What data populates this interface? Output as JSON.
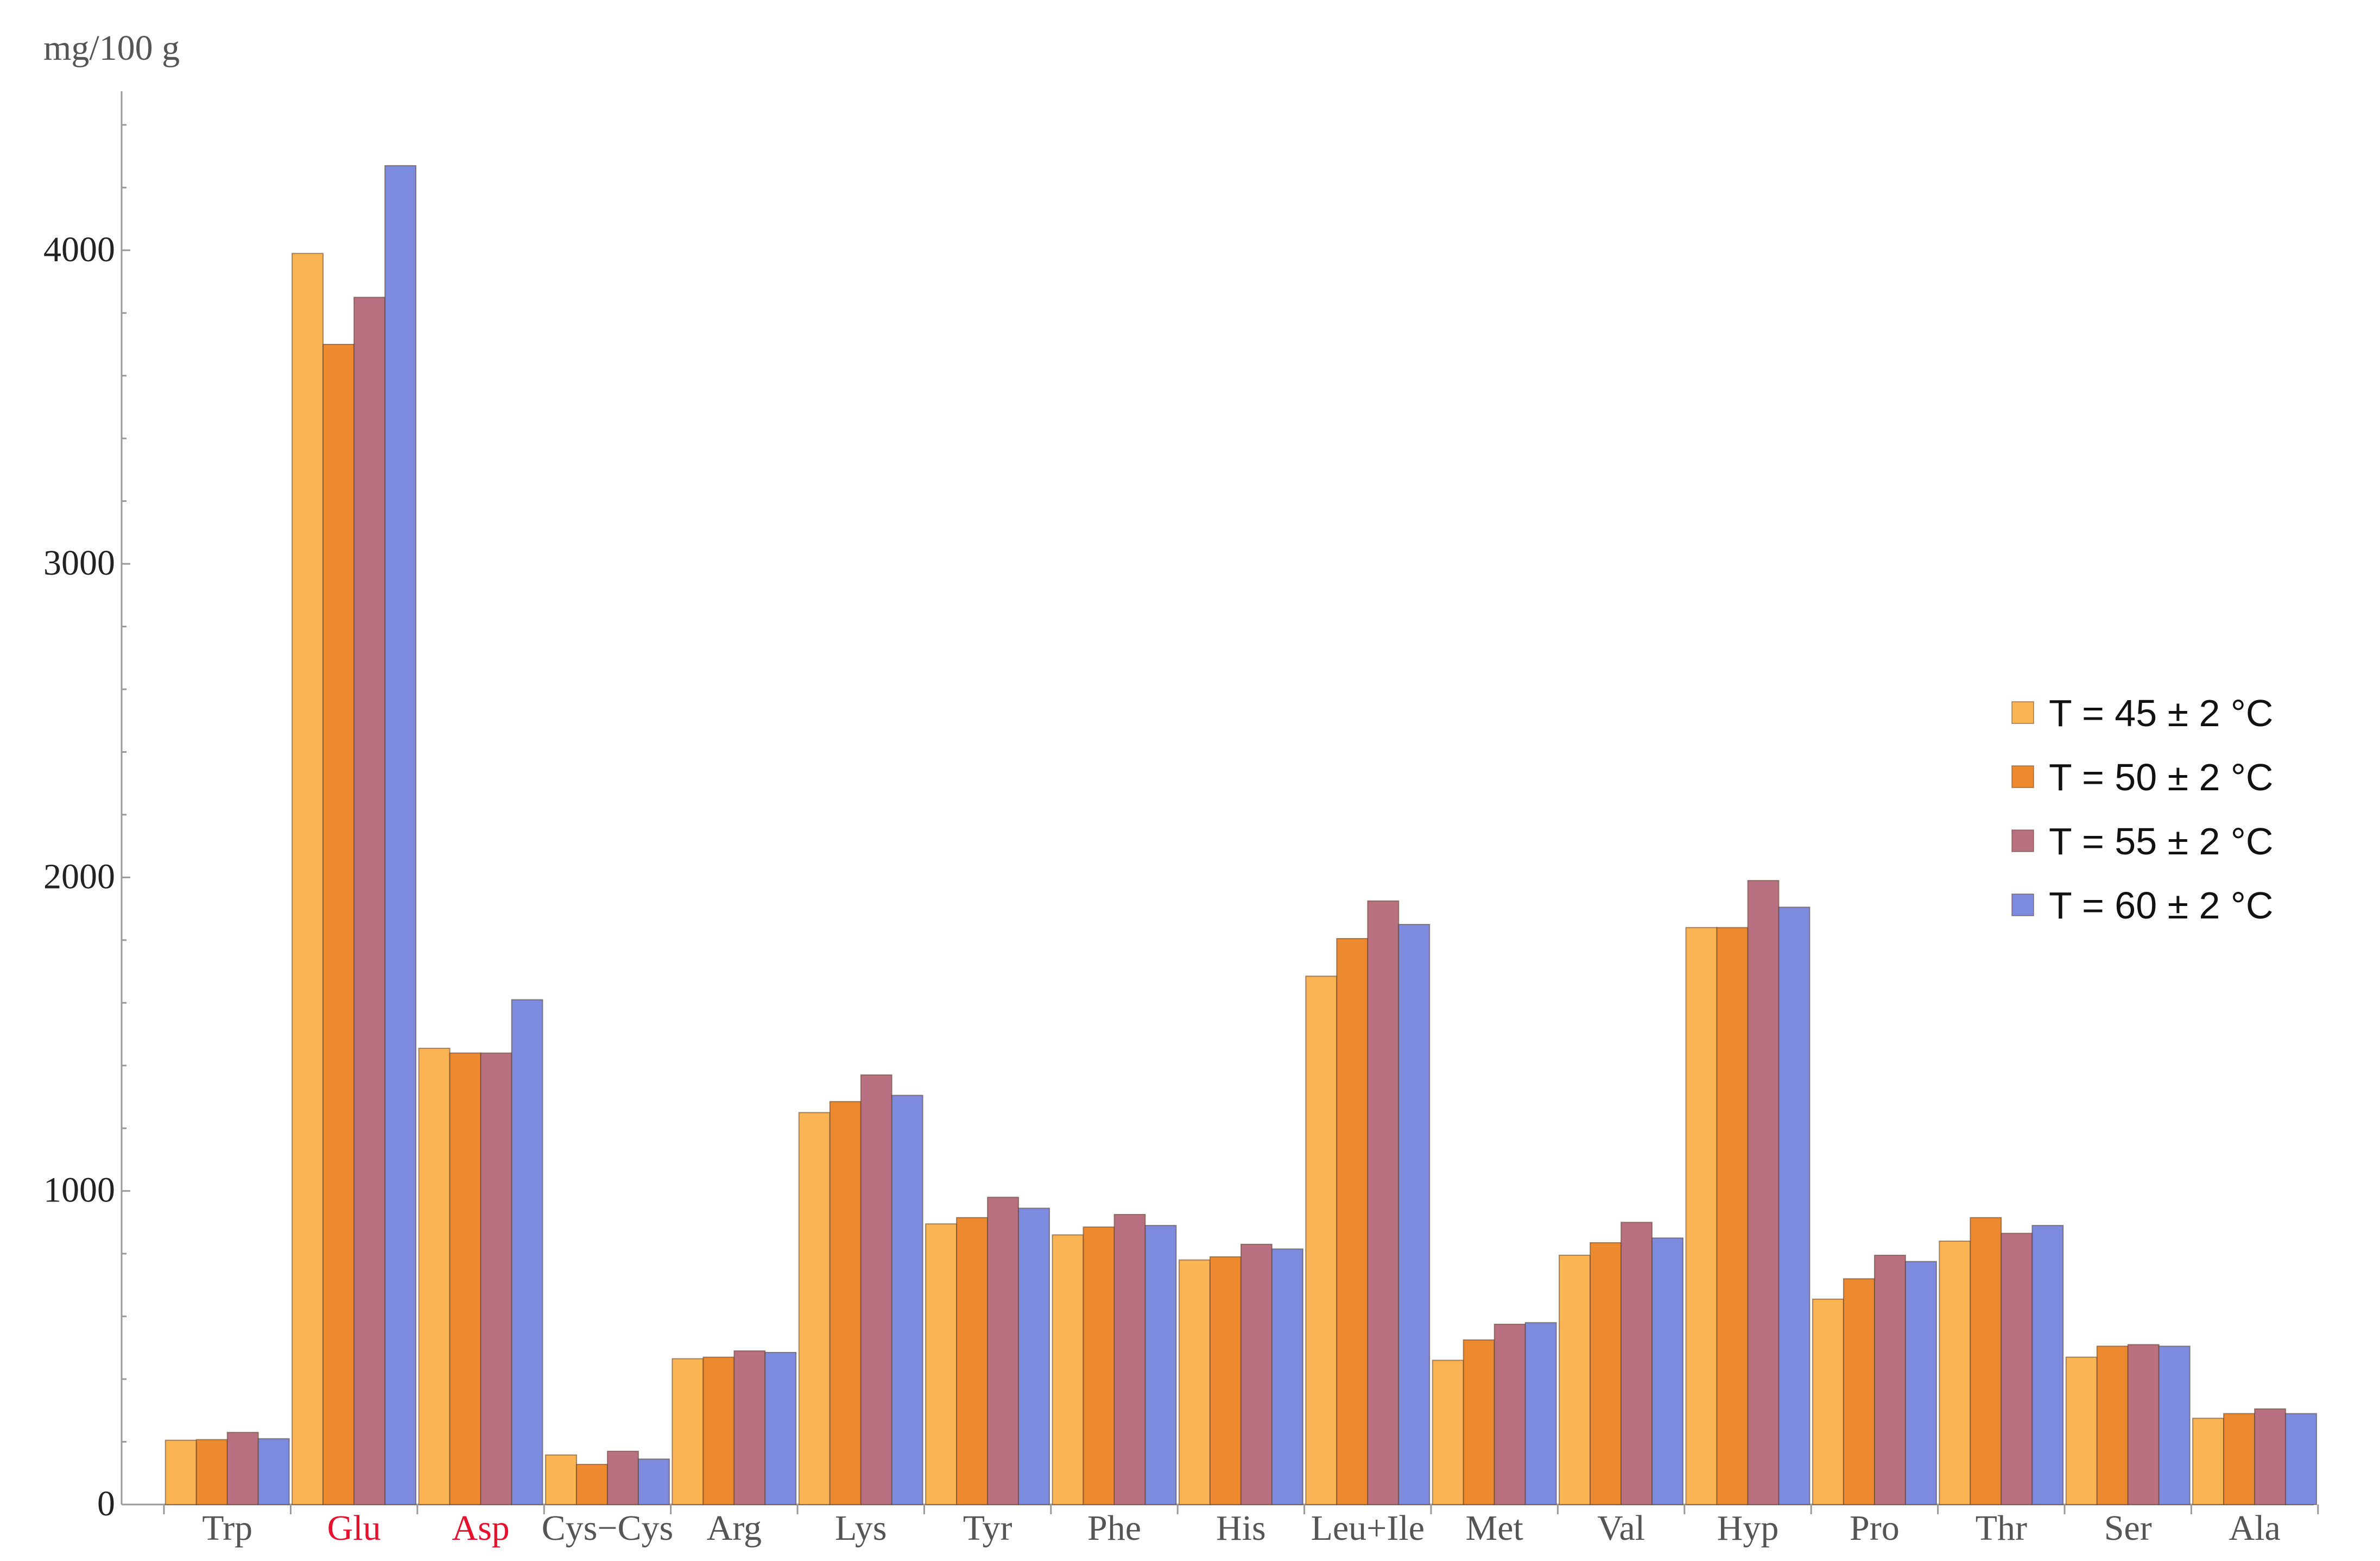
{
  "chart_data": {
    "type": "bar",
    "ylabel": "mg/100 g",
    "ylim": [
      0,
      4400
    ],
    "yticks": [
      0,
      1000,
      2000,
      3000,
      4000
    ],
    "yticks_labels": [
      "0",
      "1000",
      "2000",
      "3000",
      "4000"
    ],
    "grid": false,
    "legend_position": "right",
    "categories": [
      "Trp",
      "Glu",
      "Asp",
      "Cys−Cys",
      "Arg",
      "Lys",
      "Tyr",
      "Phe",
      "His",
      "Leu+Ile",
      "Met",
      "Val",
      "Hyp",
      "Pro",
      "Thr",
      "Ser",
      "Ala"
    ],
    "highlighted_categories": [
      "Glu",
      "Asp"
    ],
    "highlight_color": "#e8112d",
    "category_label_color": "#555555",
    "series": [
      {
        "name": "T = 45 ± 2 °C",
        "color": "#fbb454",
        "values": [
          205,
          3990,
          1455,
          158,
          465,
          1250,
          895,
          860,
          780,
          1685,
          460,
          795,
          1840,
          655,
          840,
          470,
          275
        ]
      },
      {
        "name": "T = 50 ± 2 °C",
        "color": "#ed8a30",
        "values": [
          207,
          3700,
          1440,
          128,
          470,
          1285,
          915,
          885,
          790,
          1805,
          525,
          835,
          1840,
          720,
          915,
          505,
          290
        ]
      },
      {
        "name": "T = 55 ± 2 °C",
        "color": "#b97182",
        "values": [
          230,
          3850,
          1440,
          170,
          490,
          1370,
          980,
          925,
          830,
          1925,
          575,
          900,
          1990,
          795,
          865,
          510,
          305
        ]
      },
      {
        "name": "T = 60 ± 2 °C",
        "color": "#7c8bdd",
        "values": [
          210,
          4270,
          1610,
          145,
          485,
          1305,
          945,
          890,
          815,
          1850,
          580,
          850,
          1905,
          775,
          890,
          505,
          290
        ]
      }
    ]
  }
}
